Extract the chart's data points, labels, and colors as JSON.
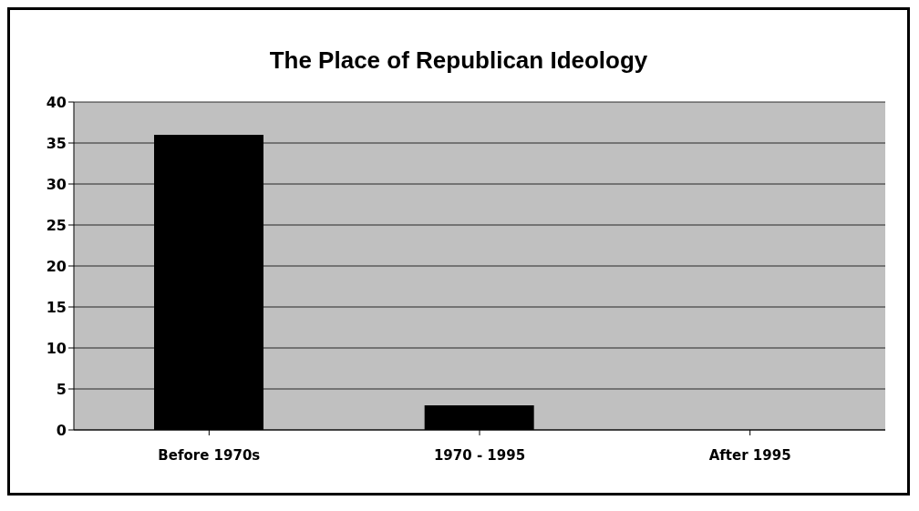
{
  "chart_data": {
    "type": "bar",
    "title": "The Place of Republican Ideology",
    "categories": [
      "Before 1970s",
      "1970 - 1995",
      "After 1995"
    ],
    "values": [
      36,
      3,
      0
    ],
    "color": "#000000",
    "ylim": [
      0,
      40
    ],
    "yticks": [
      0,
      5,
      10,
      15,
      20,
      25,
      30,
      35,
      40
    ],
    "grid": "y"
  }
}
